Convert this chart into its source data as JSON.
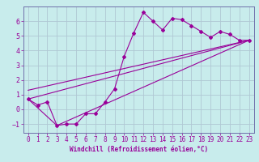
{
  "xlabel": "Windchill (Refroidissement éolien,°C)",
  "bg_color": "#c8ecec",
  "grid_color": "#b0c8d4",
  "line_color": "#990099",
  "spine_color": "#7070aa",
  "xlim": [
    -0.5,
    23.5
  ],
  "ylim": [
    -1.6,
    7.0
  ],
  "xticks": [
    0,
    1,
    2,
    3,
    4,
    5,
    6,
    7,
    8,
    9,
    10,
    11,
    12,
    13,
    14,
    15,
    16,
    17,
    18,
    19,
    20,
    21,
    22,
    23
  ],
  "yticks": [
    -1,
    0,
    1,
    2,
    3,
    4,
    5,
    6
  ],
  "line1_x": [
    0,
    1,
    2,
    3,
    4,
    5,
    6,
    7,
    8,
    9,
    10,
    11,
    12,
    13,
    14,
    15,
    16,
    17,
    18,
    19,
    20,
    21,
    22,
    23
  ],
  "line1_y": [
    0.7,
    0.3,
    0.5,
    -1.1,
    -1.0,
    -1.0,
    -0.3,
    -0.3,
    0.5,
    1.4,
    3.6,
    5.2,
    6.6,
    6.0,
    5.4,
    6.2,
    6.1,
    5.7,
    5.3,
    4.9,
    5.3,
    5.1,
    4.7,
    4.7
  ],
  "line2_x": [
    0,
    3,
    23
  ],
  "line2_y": [
    0.7,
    -1.1,
    4.7
  ],
  "line3_x": [
    0,
    23
  ],
  "line3_y": [
    0.7,
    4.7
  ],
  "line4_x": [
    0,
    23
  ],
  "line4_y": [
    1.3,
    4.7
  ],
  "tick_fontsize": 5.5,
  "label_fontsize": 5.5
}
